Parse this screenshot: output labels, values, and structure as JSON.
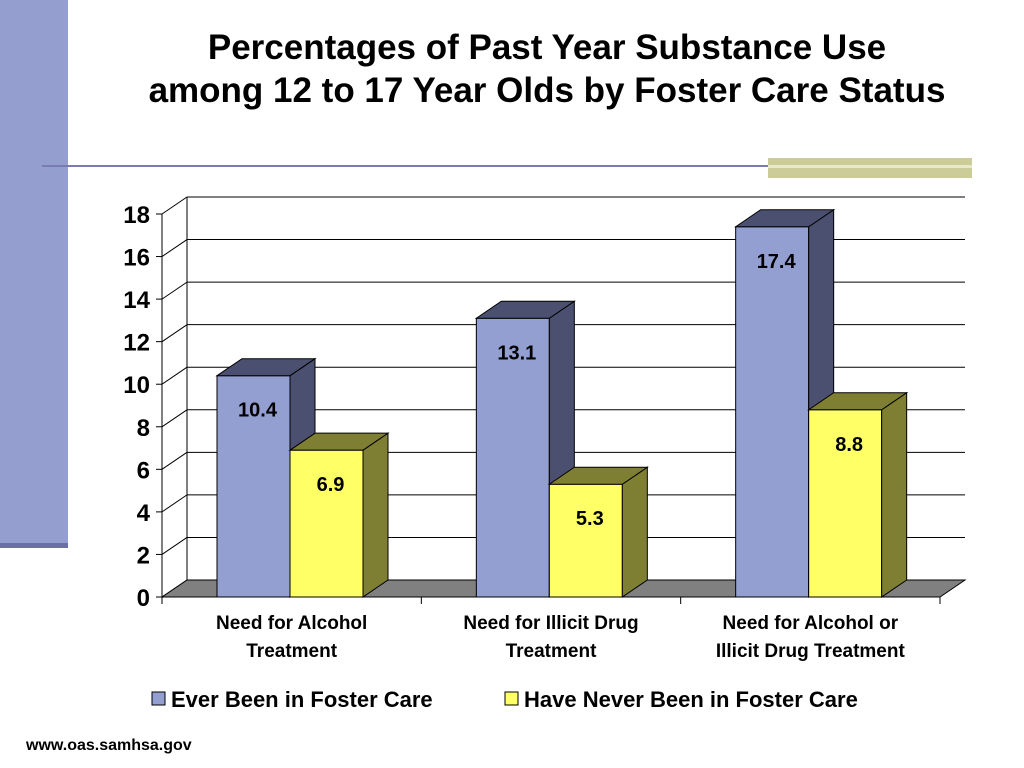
{
  "slide": {
    "title_line1": "Percentages of Past Year Substance Use",
    "title_line2": "among 12 to 17 Year Olds by Foster Care Status",
    "footer": "www.oas.samhsa.gov"
  },
  "colors": {
    "series1_front": "#939fd0",
    "series1_side": "#4b5070",
    "series2_front": "#ffff66",
    "series2_side": "#7f7f33",
    "floor": "#808080",
    "grid": "#000000"
  },
  "chart_data": {
    "type": "bar",
    "title": "",
    "xlabel": "",
    "ylabel": "",
    "ylim": [
      0,
      18
    ],
    "yticks": [
      0,
      2,
      4,
      6,
      8,
      10,
      12,
      14,
      16,
      18
    ],
    "grid": true,
    "legend_position": "bottom",
    "categories": [
      [
        "Need for Alcohol",
        "Treatment"
      ],
      [
        "Need for Illicit Drug",
        "Treatment"
      ],
      [
        "Need for Alcohol or",
        "Illicit Drug Treatment"
      ]
    ],
    "series": [
      {
        "name": "Ever Been in Foster Care",
        "values": [
          10.4,
          13.1,
          17.4
        ],
        "labels": [
          "10.4",
          "13.1",
          "17.4"
        ]
      },
      {
        "name": "Have Never Been in Foster Care",
        "values": [
          6.9,
          5.3,
          8.8
        ],
        "labels": [
          "6.9",
          "5.3",
          "8.8"
        ]
      }
    ]
  }
}
